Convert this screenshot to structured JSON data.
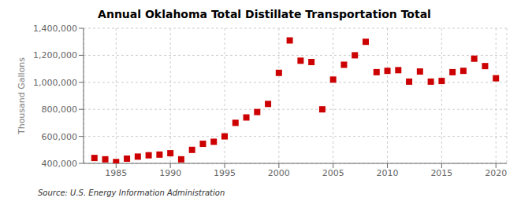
{
  "chart_data": {
    "type": "scatter",
    "title": "Annual Oklahoma Total Distillate Transportation Total",
    "ylabel": "Thousand Gallons",
    "source": "Source: U.S. Energy Information Administration",
    "x": [
      1983,
      1984,
      1985,
      1986,
      1987,
      1988,
      1989,
      1990,
      1991,
      1992,
      1993,
      1994,
      1995,
      1996,
      1997,
      1998,
      1999,
      2000,
      2001,
      2002,
      2003,
      2004,
      2005,
      2006,
      2007,
      2008,
      2009,
      2010,
      2011,
      2012,
      2013,
      2014,
      2015,
      2016,
      2017,
      2018,
      2019,
      2020
    ],
    "values": [
      440000,
      430000,
      410000,
      435000,
      450000,
      460000,
      465000,
      475000,
      430000,
      500000,
      545000,
      560000,
      600000,
      700000,
      740000,
      780000,
      840000,
      1070000,
      1310000,
      1160000,
      1150000,
      800000,
      1020000,
      1130000,
      1200000,
      1300000,
      1075000,
      1085000,
      1090000,
      1005000,
      1080000,
      1005000,
      1010000,
      1075000,
      1085000,
      1175000,
      1120000,
      1030000
    ],
    "color": "#cc0000",
    "marker": "square",
    "xlim": [
      1982,
      2021
    ],
    "ylim": [
      400000,
      1400000
    ],
    "xticks": [
      1985,
      1990,
      1995,
      2000,
      2005,
      2010,
      2015,
      2020
    ],
    "yticks": [
      {
        "value": 400000,
        "label": "400,000"
      },
      {
        "value": 600000,
        "label": "600,000"
      },
      {
        "value": 800000,
        "label": "800,000"
      },
      {
        "value": 1000000,
        "label": "1,000,000"
      },
      {
        "value": 1200000,
        "label": "1,200,000"
      },
      {
        "value": 1400000,
        "label": "1,400,000"
      }
    ],
    "grid": true
  }
}
